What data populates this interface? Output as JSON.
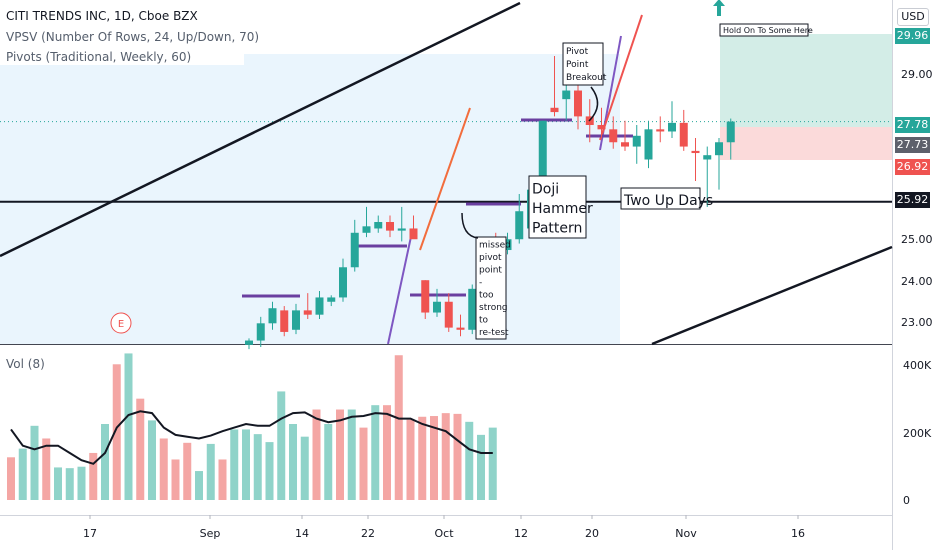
{
  "header": {
    "symbol_line": "CITI TRENDS INC, 1D, Cboe BZX",
    "indicator_1": "VPSV (Number Of Rows, 24, Up/Down, 70)",
    "indicator_2": "Pivots (Traditional, Weekly, 60)",
    "volume_label": "Vol (8)",
    "currency": "USD"
  },
  "colors": {
    "up": "#26a69a",
    "down": "#ef5350",
    "up_volume": "#8fd3c9",
    "down_volume": "#f4a6a4",
    "pivot_line": "#6a3fa0",
    "trend_line": "#131722",
    "zone_fill": "#eaf5fd",
    "target_zone": "#d3ede7",
    "stop_zone": "#fbdada"
  },
  "annotations": {
    "pivot_breakout": [
      "Pivot",
      "Point",
      "Breakout"
    ],
    "doji": [
      "Doji",
      "Hammer",
      "Pattern"
    ],
    "two_up_days": "Two Up Days",
    "missed_pivot": [
      "missed",
      "pivot",
      "point",
      "-",
      "too",
      "strong",
      "to",
      "re-test"
    ],
    "hold_on": "Hold On To Some Here",
    "earnings_marker": "E"
  },
  "price_tags": [
    {
      "value": "29.96",
      "bg": "#26a69a"
    },
    {
      "value": "27.78",
      "bg": "#26a69a"
    },
    {
      "value": "27.73",
      "bg": "#5d606b"
    },
    {
      "value": "26.92",
      "bg": "#ef5350"
    },
    {
      "value": "25.92",
      "bg": "#131722"
    }
  ],
  "chart_data": {
    "type": "candlestick",
    "price_axis_ticks": [
      "29.00",
      "25.00",
      "24.00",
      "23.00"
    ],
    "volume_axis_ticks": [
      "400K",
      "200K",
      "0"
    ],
    "x_axis_ticks": [
      "17",
      "Sep",
      "14",
      "22",
      "Oct",
      "12",
      "20",
      "Nov",
      "16"
    ],
    "ylim": [
      22.62,
      30.6
    ],
    "volume_ylim": [
      0,
      420000
    ],
    "horizontal_level": 25.92,
    "candles": [
      {
        "o": 22.6,
        "h": 22.75,
        "l": 22.5,
        "c": 22.7
      },
      {
        "o": 22.7,
        "h": 23.25,
        "l": 22.55,
        "c": 23.1
      },
      {
        "o": 23.1,
        "h": 23.6,
        "l": 22.95,
        "c": 23.45
      },
      {
        "o": 23.4,
        "h": 23.5,
        "l": 22.8,
        "c": 22.9
      },
      {
        "o": 22.95,
        "h": 23.55,
        "l": 22.85,
        "c": 23.4
      },
      {
        "o": 23.4,
        "h": 23.8,
        "l": 23.2,
        "c": 23.3
      },
      {
        "o": 23.3,
        "h": 23.85,
        "l": 23.2,
        "c": 23.7
      },
      {
        "o": 23.6,
        "h": 23.75,
        "l": 23.5,
        "c": 23.7
      },
      {
        "o": 23.7,
        "h": 24.6,
        "l": 23.6,
        "c": 24.4
      },
      {
        "o": 24.4,
        "h": 25.5,
        "l": 24.3,
        "c": 25.2
      },
      {
        "o": 25.2,
        "h": 25.8,
        "l": 25.1,
        "c": 25.35
      },
      {
        "o": 25.3,
        "h": 25.6,
        "l": 25.2,
        "c": 25.45
      },
      {
        "o": 25.45,
        "h": 25.6,
        "l": 25.1,
        "c": 25.25
      },
      {
        "o": 25.25,
        "h": 25.8,
        "l": 25.0,
        "c": 25.3
      },
      {
        "o": 25.3,
        "h": 25.6,
        "l": 25.1,
        "c": 25.05
      },
      {
        "o": 24.1,
        "h": 24.1,
        "l": 23.2,
        "c": 23.35
      },
      {
        "o": 23.35,
        "h": 23.9,
        "l": 23.25,
        "c": 23.6
      },
      {
        "o": 23.6,
        "h": 23.8,
        "l": 22.9,
        "c": 23.0
      },
      {
        "o": 23.0,
        "h": 23.3,
        "l": 22.8,
        "c": 22.95
      },
      {
        "o": 22.95,
        "h": 24.0,
        "l": 22.85,
        "c": 23.9
      },
      {
        "o": 23.9,
        "h": 25.1,
        "l": 23.8,
        "c": 24.9
      },
      {
        "o": 24.9,
        "h": 25.2,
        "l": 24.2,
        "c": 24.8
      },
      {
        "o": 24.8,
        "h": 25.2,
        "l": 24.7,
        "c": 25.05
      },
      {
        "o": 25.05,
        "h": 26.1,
        "l": 24.95,
        "c": 25.7
      },
      {
        "o": 25.3,
        "h": 26.2,
        "l": 25.2,
        "c": 26.2
      },
      {
        "o": 26.2,
        "h": 27.8,
        "l": 26.1,
        "c": 27.8
      },
      {
        "o": 28.1,
        "h": 29.3,
        "l": 27.9,
        "c": 28.0
      },
      {
        "o": 28.3,
        "h": 29.0,
        "l": 27.8,
        "c": 28.5
      },
      {
        "o": 28.5,
        "h": 28.9,
        "l": 27.6,
        "c": 27.9
      },
      {
        "o": 27.9,
        "h": 28.3,
        "l": 27.3,
        "c": 27.7
      },
      {
        "o": 27.7,
        "h": 28.1,
        "l": 27.4,
        "c": 27.6
      },
      {
        "o": 27.6,
        "h": 27.9,
        "l": 27.15,
        "c": 27.3
      },
      {
        "o": 27.3,
        "h": 27.8,
        "l": 27.1,
        "c": 27.2
      },
      {
        "o": 27.2,
        "h": 27.7,
        "l": 26.8,
        "c": 27.45
      },
      {
        "o": 26.9,
        "h": 27.8,
        "l": 26.7,
        "c": 27.6
      },
      {
        "o": 27.6,
        "h": 27.9,
        "l": 27.3,
        "c": 27.55
      },
      {
        "o": 27.55,
        "h": 28.25,
        "l": 27.4,
        "c": 27.75
      },
      {
        "o": 27.75,
        "h": 28.05,
        "l": 27.1,
        "c": 27.2
      },
      {
        "o": 27.1,
        "h": 27.4,
        "l": 26.4,
        "c": 27.05
      },
      {
        "o": 26.9,
        "h": 27.2,
        "l": 25.8,
        "c": 27.0
      },
      {
        "o": 27.0,
        "h": 27.4,
        "l": 26.2,
        "c": 27.3
      },
      {
        "o": 27.3,
        "h": 27.85,
        "l": 26.9,
        "c": 27.78
      }
    ],
    "volumes": [
      {
        "v": 118000,
        "up": false
      },
      {
        "v": 142000,
        "up": true
      },
      {
        "v": 205000,
        "up": true
      },
      {
        "v": 170000,
        "up": false
      },
      {
        "v": 90000,
        "up": true
      },
      {
        "v": 88000,
        "up": true
      },
      {
        "v": 92000,
        "up": true
      },
      {
        "v": 130000,
        "up": false
      },
      {
        "v": 210000,
        "up": true
      },
      {
        "v": 375000,
        "up": false
      },
      {
        "v": 405000,
        "up": true
      },
      {
        "v": 280000,
        "up": false
      },
      {
        "v": 220000,
        "up": true
      },
      {
        "v": 170000,
        "up": false
      },
      {
        "v": 112000,
        "up": false
      },
      {
        "v": 158000,
        "up": false
      },
      {
        "v": 80000,
        "up": true
      },
      {
        "v": 155000,
        "up": true
      },
      {
        "v": 112000,
        "up": false
      },
      {
        "v": 195000,
        "up": true
      },
      {
        "v": 195000,
        "up": true
      },
      {
        "v": 182000,
        "up": true
      },
      {
        "v": 160000,
        "up": true
      },
      {
        "v": 300000,
        "up": true
      },
      {
        "v": 210000,
        "up": true
      },
      {
        "v": 175000,
        "up": true
      },
      {
        "v": 250000,
        "up": false
      },
      {
        "v": 210000,
        "up": true
      },
      {
        "v": 250000,
        "up": false
      },
      {
        "v": 250000,
        "up": true
      },
      {
        "v": 200000,
        "up": false
      },
      {
        "v": 262000,
        "up": true
      },
      {
        "v": 262000,
        "up": false
      },
      {
        "v": 400000,
        "up": false
      },
      {
        "v": 222000,
        "up": false
      },
      {
        "v": 230000,
        "up": false
      },
      {
        "v": 232000,
        "up": false
      },
      {
        "v": 240000,
        "up": false
      },
      {
        "v": 238000,
        "up": false
      },
      {
        "v": 216000,
        "up": true
      },
      {
        "v": 180000,
        "up": true
      },
      {
        "v": 200000,
        "up": true
      }
    ],
    "volume_ma": [
      195000,
      150000,
      140000,
      150000,
      150000,
      130000,
      110000,
      100000,
      130000,
      200000,
      235000,
      245000,
      240000,
      200000,
      180000,
      175000,
      170000,
      178000,
      190000,
      200000,
      210000,
      205000,
      205000,
      225000,
      240000,
      242000,
      225000,
      215000,
      220000,
      230000,
      232000,
      240000,
      238000,
      225000,
      225000,
      210000,
      200000,
      190000,
      165000,
      140000,
      130000,
      130000
    ]
  }
}
